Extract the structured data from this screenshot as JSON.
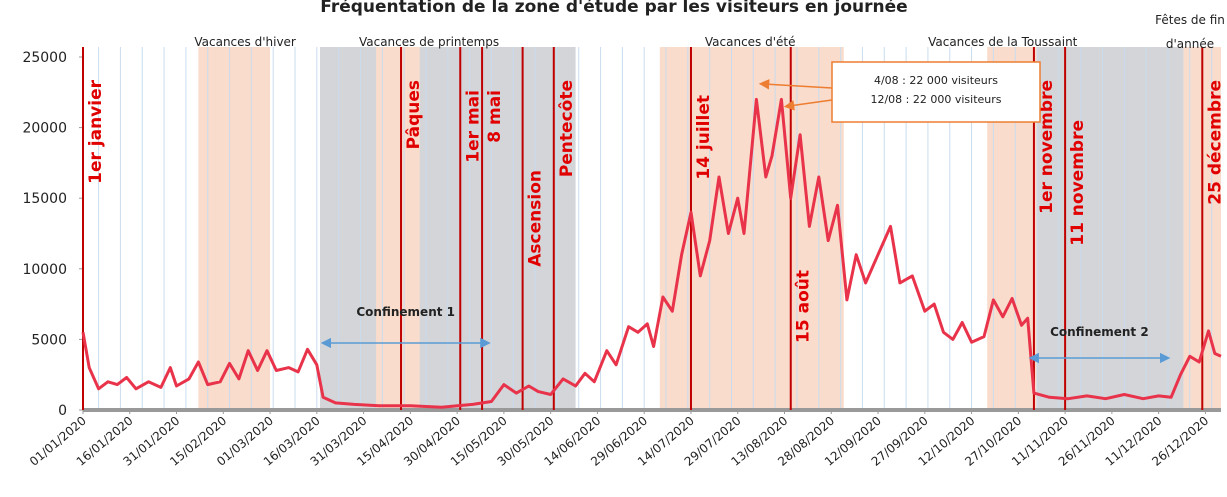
{
  "chart_data": {
    "type": "line",
    "title": "Fréquentation de la zone d'étude par les visiteurs en journée",
    "color": "#e8334a",
    "xlim": [
      "01/01/2020",
      "31/12/2020"
    ],
    "xticks": [
      "01/01/2020",
      "16/01/2020",
      "31/01/2020",
      "15/02/2020",
      "01/03/2020",
      "16/03/2020",
      "31/03/2020",
      "15/04/2020",
      "30/04/2020",
      "15/05/2020",
      "30/05/2020",
      "14/06/2020",
      "29/06/2020",
      "14/07/2020",
      "29/07/2020",
      "13/08/2020",
      "28/08/2020",
      "12/09/2020",
      "27/09/2020",
      "12/10/2020",
      "27/10/2020",
      "11/11/2020",
      "26/11/2020",
      "11/12/2020",
      "26/12/2020"
    ],
    "ylim": [
      0,
      25000
    ],
    "yticks": [
      0,
      5000,
      10000,
      15000,
      20000,
      25000
    ],
    "x": [
      "01/01/2020",
      "03/01/2020",
      "06/01/2020",
      "09/01/2020",
      "12/01/2020",
      "15/01/2020",
      "18/01/2020",
      "22/01/2020",
      "26/01/2020",
      "29/01/2020",
      "31/01/2020",
      "04/02/2020",
      "07/02/2020",
      "10/02/2020",
      "14/02/2020",
      "17/02/2020",
      "20/02/2020",
      "23/02/2020",
      "26/02/2020",
      "29/02/2020",
      "03/03/2020",
      "07/03/2020",
      "10/03/2020",
      "13/03/2020",
      "16/03/2020",
      "18/03/2020",
      "22/03/2020",
      "28/03/2020",
      "05/04/2020",
      "15/04/2020",
      "25/04/2020",
      "05/05/2020",
      "11/05/2020",
      "15/05/2020",
      "19/05/2020",
      "23/05/2020",
      "26/05/2020",
      "30/05/2020",
      "03/06/2020",
      "07/06/2020",
      "10/06/2020",
      "13/06/2020",
      "17/06/2020",
      "20/06/2020",
      "24/06/2020",
      "27/06/2020",
      "30/06/2020",
      "02/07/2020",
      "05/07/2020",
      "08/07/2020",
      "11/07/2020",
      "14/07/2020",
      "17/07/2020",
      "20/07/2020",
      "23/07/2020",
      "26/07/2020",
      "29/07/2020",
      "31/07/2020",
      "04/08/2020",
      "07/08/2020",
      "09/08/2020",
      "12/08/2020",
      "15/08/2020",
      "18/08/2020",
      "21/08/2020",
      "24/08/2020",
      "27/08/2020",
      "30/08/2020",
      "02/09/2020",
      "05/09/2020",
      "08/09/2020",
      "12/09/2020",
      "16/09/2020",
      "19/09/2020",
      "23/09/2020",
      "27/09/2020",
      "30/09/2020",
      "03/10/2020",
      "06/10/2020",
      "09/10/2020",
      "12/10/2020",
      "16/10/2020",
      "19/10/2020",
      "22/10/2020",
      "25/10/2020",
      "28/10/2020",
      "30/10/2020",
      "01/11/2020",
      "06/11/2020",
      "12/11/2020",
      "18/11/2020",
      "24/11/2020",
      "30/11/2020",
      "06/12/2020",
      "11/12/2020",
      "15/12/2020",
      "18/12/2020",
      "21/12/2020",
      "24/12/2020",
      "27/12/2020",
      "29/12/2020",
      "31/12/2020"
    ],
    "values": [
      5500,
      3000,
      1500,
      2000,
      1800,
      2300,
      1500,
      2000,
      1600,
      3000,
      1700,
      2200,
      3400,
      1800,
      2000,
      3300,
      2200,
      4200,
      2800,
      4200,
      2800,
      3000,
      2700,
      4300,
      3200,
      900,
      500,
      400,
      300,
      300,
      200,
      400,
      600,
      1800,
      1200,
      1700,
      1300,
      1100,
      2200,
      1700,
      2600,
      2000,
      4200,
      3200,
      5900,
      5500,
      6100,
      4500,
      8000,
      7000,
      11000,
      14000,
      9500,
      12000,
      16500,
      12500,
      15000,
      12500,
      22000,
      16500,
      18000,
      22000,
      15000,
      19500,
      13000,
      16500,
      12000,
      14500,
      7800,
      11000,
      9000,
      11000,
      13000,
      9000,
      9500,
      7000,
      7500,
      5500,
      5000,
      6200,
      4800,
      5200,
      7800,
      6600,
      7900,
      6000,
      6500,
      1200,
      900,
      800,
      1000,
      800,
      1100,
      800,
      1000,
      900,
      2500,
      3800,
      3400,
      5600,
      4000,
      3800
    ],
    "shaded_periods": [
      {
        "start": "07/02/2020",
        "end": "01/03/2020",
        "color": "#f9dccb"
      },
      {
        "start": "17/03/2020",
        "end": "07/06/2020",
        "color": "#d3d5d9"
      },
      {
        "start": "04/04/2020",
        "end": "18/04/2020",
        "color": "#f9dccb"
      },
      {
        "start": "04/07/2020",
        "end": "01/09/2020",
        "color": "#f9dccb"
      },
      {
        "start": "17/10/2020",
        "end": "02/11/2020",
        "color": "#f9dccb"
      },
      {
        "start": "02/11/2020",
        "end": "19/12/2020",
        "color": "#d3d5d9"
      },
      {
        "start": "19/12/2020",
        "end": "31/12/2020",
        "color": "#f9dccb"
      }
    ],
    "period_labels": [
      {
        "label": "Vacances d'hiver",
        "date": "22/02/2020"
      },
      {
        "label": "Vacances de printemps",
        "date": "21/04/2020"
      },
      {
        "label": "Vacances d'été",
        "date": "02/08/2020"
      },
      {
        "label": "Vacances de la Toussaint",
        "date": "22/10/2020"
      }
    ],
    "year_end_label": [
      "Fêtes de fin",
      "d'année"
    ],
    "holidays": [
      {
        "label": "1er janvier",
        "date": "01/01/2020"
      },
      {
        "label": "Pâques",
        "date": "12/04/2020"
      },
      {
        "label": "1er mai",
        "date": "01/05/2020"
      },
      {
        "label": "8 mai",
        "date": "08/05/2020"
      },
      {
        "label": "Ascension",
        "date": "21/05/2020"
      },
      {
        "label": "Pentecôte",
        "date": "31/05/2020"
      },
      {
        "label": "14 juillet",
        "date": "14/07/2020"
      },
      {
        "label": "15 août",
        "date": "15/08/2020"
      },
      {
        "label": "1er novembre",
        "date": "01/11/2020"
      },
      {
        "label": "11 novembre",
        "date": "11/11/2020"
      },
      {
        "label": "25 décembre",
        "date": "25/12/2020"
      }
    ],
    "confinements": [
      {
        "label": "Confinement 1",
        "start": "17/03/2020",
        "end": "11/05/2020"
      },
      {
        "label": "Confinement 2",
        "start": "30/10/2020",
        "end": "15/12/2020"
      }
    ],
    "annotations": [
      "4/08 : 22 000 visiteurs",
      "12/08 : 22 000 visiteurs"
    ]
  }
}
